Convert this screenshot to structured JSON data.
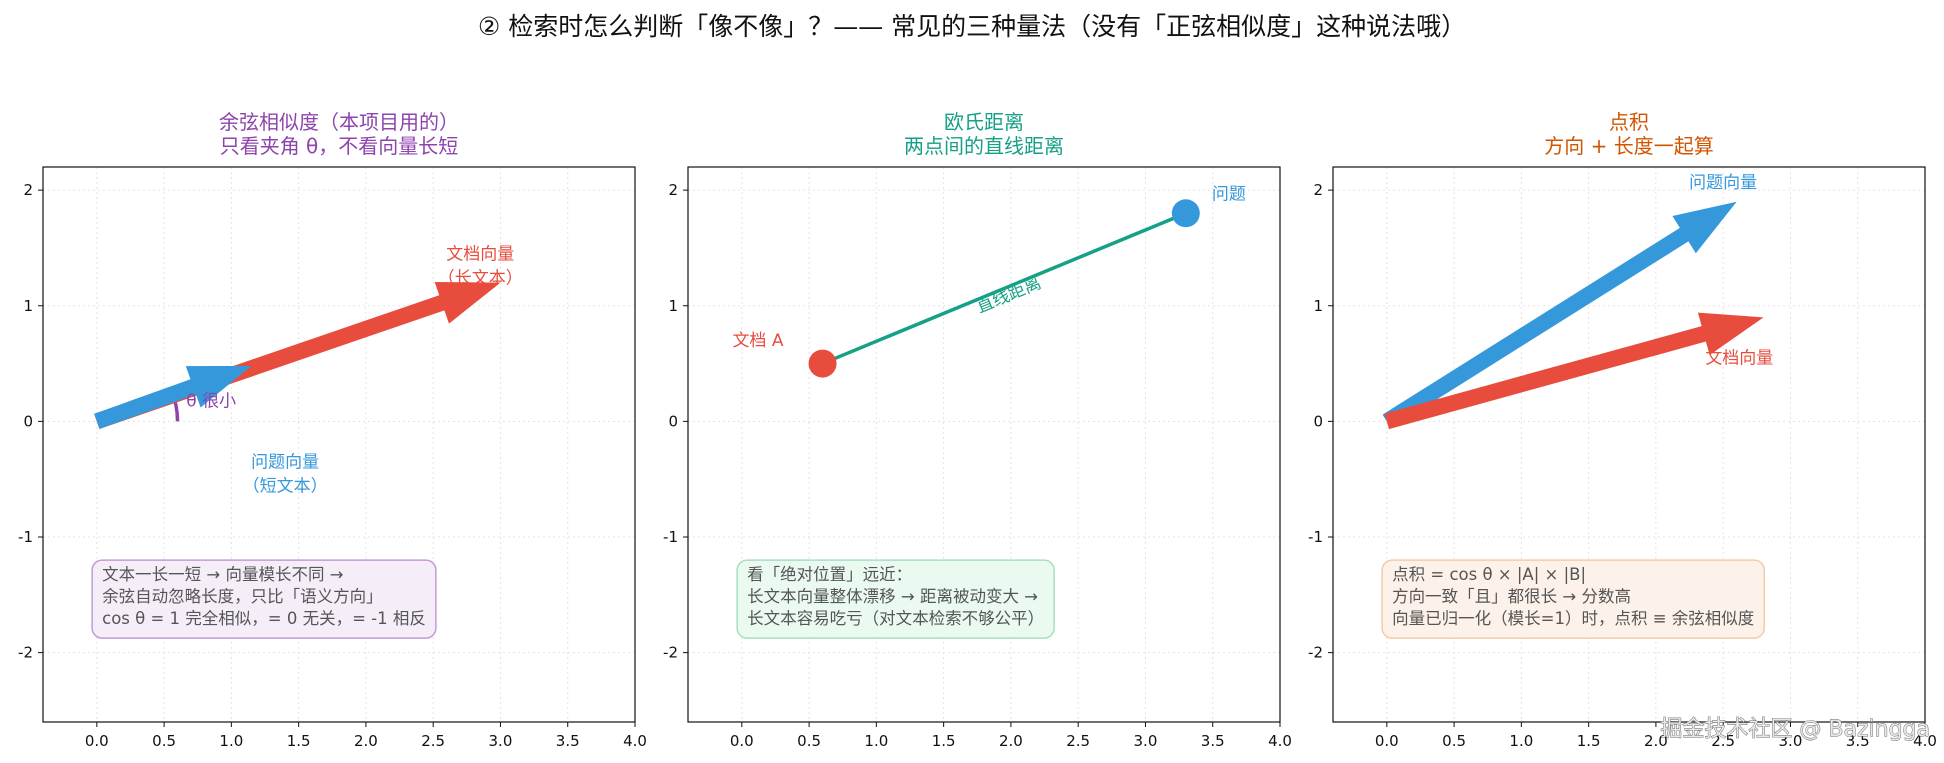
{
  "figure": {
    "title": "② 检索时怎么判断「像不像」？—— 常见的三种量法（没有「正弦相似度」这种说法哦）",
    "watermark": "掘金技术社区 @ Bazingga"
  },
  "chart_data": [
    {
      "type": "diagram",
      "title_lines": [
        "余弦相似度（本项目用的）",
        "只看夹角 θ，不看向量长短"
      ],
      "title_color": "#8e44ad",
      "xlim": [
        -0.4,
        4.0
      ],
      "ylim": [
        -2.6,
        2.2
      ],
      "xticks": [
        "0.0",
        "0.5",
        "1.0",
        "1.5",
        "2.0",
        "2.5",
        "3.0",
        "3.5",
        "4.0"
      ],
      "yticks": [
        "-2",
        "-1",
        "0",
        "1",
        "2"
      ],
      "grid": true,
      "arrows": [
        {
          "name": "doc-vector",
          "from": [
            0,
            0
          ],
          "to": [
            3.0,
            1.2
          ],
          "color": "#e74c3c"
        },
        {
          "name": "query-vector",
          "from": [
            0,
            0
          ],
          "to": [
            1.15,
            0.48
          ],
          "color": "#3498db"
        }
      ],
      "angle_arc": {
        "center": [
          0,
          0
        ],
        "radius": 0.6,
        "color": "#8e44ad"
      },
      "labels": [
        {
          "lines": [
            "文档向量",
            "（长文本）"
          ],
          "at": [
            2.85,
            1.4
          ],
          "color": "#e74c3c"
        },
        {
          "lines": [
            "θ 很小"
          ],
          "at": [
            0.85,
            0.13
          ],
          "color": "#8e44ad"
        },
        {
          "lines": [
            "问题向量",
            "（短文本）"
          ],
          "at": [
            1.4,
            -0.4
          ],
          "color": "#3498db"
        }
      ],
      "note": {
        "lines": [
          "文本一长一短 → 向量模长不同 →",
          "余弦自动忽略长度，只比「语义方向」",
          "cos θ = 1 完全相似，= 0 无关，= -1 相反"
        ],
        "border": "#c39bd3",
        "fill": "#f5eef8"
      }
    },
    {
      "type": "diagram",
      "title_lines": [
        "欧氏距离",
        "两点间的直线距离"
      ],
      "title_color": "#16a085",
      "xlim": [
        -0.4,
        4.0
      ],
      "ylim": [
        -2.6,
        2.2
      ],
      "xticks": [
        "0.0",
        "0.5",
        "1.0",
        "1.5",
        "2.0",
        "2.5",
        "3.0",
        "3.5",
        "4.0"
      ],
      "yticks": [
        "-2",
        "-1",
        "0",
        "1",
        "2"
      ],
      "grid": true,
      "points": [
        {
          "name": "doc-a",
          "x": 0.6,
          "y": 0.5,
          "color": "#e74c3c"
        },
        {
          "name": "query",
          "x": 3.3,
          "y": 1.8,
          "color": "#3498db"
        }
      ],
      "segment": {
        "from": [
          0.6,
          0.5
        ],
        "to": [
          3.3,
          1.8
        ],
        "color": "#16a085"
      },
      "labels": [
        {
          "lines": [
            "文档 A"
          ],
          "at": [
            0.12,
            0.65
          ],
          "color": "#e74c3c"
        },
        {
          "lines": [
            "问题"
          ],
          "at": [
            3.62,
            1.92
          ],
          "color": "#3498db"
        },
        {
          "lines": [
            "直线距离"
          ],
          "at": [
            2.0,
            1.05
          ],
          "color": "#16a085",
          "rotate_with_segment": true
        }
      ],
      "note": {
        "lines": [
          "看「绝对位置」远近：",
          "长文本向量整体漂移 → 距离被动变大 →",
          "长文本容易吃亏（对文本检索不够公平）"
        ],
        "border": "#a9dfbf",
        "fill": "#eafaf1"
      }
    },
    {
      "type": "diagram",
      "title_lines": [
        "点积",
        "方向 + 长度一起算"
      ],
      "title_color": "#d35400",
      "xlim": [
        -0.4,
        4.0
      ],
      "ylim": [
        -2.6,
        2.2
      ],
      "xticks": [
        "0.0",
        "0.5",
        "1.0",
        "1.5",
        "2.0",
        "2.5",
        "3.0",
        "3.5",
        "4.0"
      ],
      "yticks": [
        "-2",
        "-1",
        "0",
        "1",
        "2"
      ],
      "grid": true,
      "arrows": [
        {
          "name": "query-vector",
          "from": [
            0,
            0
          ],
          "to": [
            2.6,
            1.9
          ],
          "color": "#3498db"
        },
        {
          "name": "doc-vector",
          "from": [
            0,
            0
          ],
          "to": [
            2.8,
            0.9
          ],
          "color": "#e74c3c"
        }
      ],
      "labels": [
        {
          "lines": [
            "问题向量"
          ],
          "at": [
            2.5,
            2.02
          ],
          "color": "#3498db"
        },
        {
          "lines": [
            "文档向量"
          ],
          "at": [
            2.62,
            0.5
          ],
          "color": "#e74c3c"
        }
      ],
      "note": {
        "lines": [
          "点积 = cos θ × |A| × |B|",
          "方向一致「且」都很长 → 分数高",
          "向量已归一化（模长=1）时，点积 ≡ 余弦相似度"
        ],
        "border": "#f5cba7",
        "fill": "#fdf2e9"
      }
    }
  ]
}
